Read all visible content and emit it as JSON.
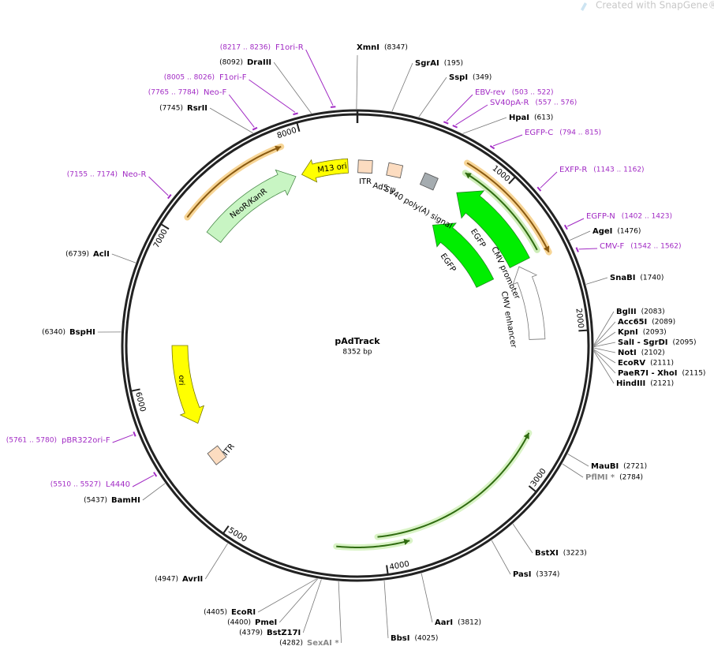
{
  "watermark": "Created with SnapGene®",
  "plasmid": {
    "name": "pAdTrack",
    "size": "8352 bp"
  },
  "sites": [
    {
      "name": "XmnI",
      "pos": "(8347)"
    },
    {
      "name": "SgrAI",
      "pos": "(195)"
    },
    {
      "name": "SspI",
      "pos": "(349)"
    },
    {
      "name": "HpaI",
      "pos": "(613)"
    },
    {
      "name": "AgeI",
      "pos": "(1476)"
    },
    {
      "name": "SnaBI",
      "pos": "(1740)"
    },
    {
      "name": "BglII",
      "pos": "(2083)"
    },
    {
      "name": "Acc65I",
      "pos": "(2089)"
    },
    {
      "name": "KpnI",
      "pos": "(2093)"
    },
    {
      "name": "SalI - SgrDI",
      "pos": "(2095)"
    },
    {
      "name": "NotI",
      "pos": "(2102)"
    },
    {
      "name": "EcoRV",
      "pos": "(2111)"
    },
    {
      "name": "PaeR7I - XhoI",
      "pos": "(2115)"
    },
    {
      "name": "HindIII",
      "pos": "(2121)"
    },
    {
      "name": "MauBI",
      "pos": "(2721)"
    },
    {
      "name": "PflMI *",
      "pos": "(2784)"
    },
    {
      "name": "BstXI",
      "pos": "(3223)"
    },
    {
      "name": "PasI",
      "pos": "(3374)"
    },
    {
      "name": "AarI",
      "pos": "(3812)"
    },
    {
      "name": "BbsI",
      "pos": "(4025)"
    },
    {
      "name": "SexAI *",
      "pos": "(4282)"
    },
    {
      "name": "BstZ17I",
      "pos": "(4379)"
    },
    {
      "name": "PmeI",
      "pos": "(4400)"
    },
    {
      "name": "EcoRI",
      "pos": "(4405)"
    },
    {
      "name": "AvrII",
      "pos": "(4947)"
    },
    {
      "name": "BamHI",
      "pos": "(5437)"
    },
    {
      "name": "BspHI",
      "pos": "(6340)"
    },
    {
      "name": "AclI",
      "pos": "(6739)"
    },
    {
      "name": "RsrII",
      "pos": "(7745)"
    },
    {
      "name": "DraIII",
      "pos": "(8092)"
    }
  ],
  "primers": [
    {
      "name": "F1ori-R",
      "range": "(8217 .. 8236)"
    },
    {
      "name": "F1ori-F",
      "range": "(8005 .. 8026)"
    },
    {
      "name": "Neo-F",
      "range": "(7765 .. 7784)"
    },
    {
      "name": "Neo-R",
      "range": "(7155 .. 7174)"
    },
    {
      "name": "pBR322ori-F",
      "range": "(5761 .. 5780)"
    },
    {
      "name": "L4440",
      "range": "(5510 .. 5527)"
    },
    {
      "name": "EBV-rev",
      "range": "(503 .. 522)"
    },
    {
      "name": "SV40pA-R",
      "range": "(557 .. 576)"
    },
    {
      "name": "EGFP-C",
      "range": "(794 .. 815)"
    },
    {
      "name": "EXFP-R",
      "range": "(1143 .. 1162)"
    },
    {
      "name": "EGFP-N",
      "range": "(1402 .. 1423)"
    },
    {
      "name": "CMV-F",
      "range": "(1542 .. 1562)"
    }
  ],
  "features": [
    "NeoR/KanR",
    "M13 ori",
    "ITR",
    "Ad5 ψ",
    "SV40 poly(A) signal",
    "EGFP",
    "EGFP",
    "CMV promoter",
    "CMV enhancer",
    "ori",
    "ITR"
  ],
  "ticks": [
    1000,
    2000,
    3000,
    4000,
    5000,
    6000,
    7000,
    8000
  ]
}
